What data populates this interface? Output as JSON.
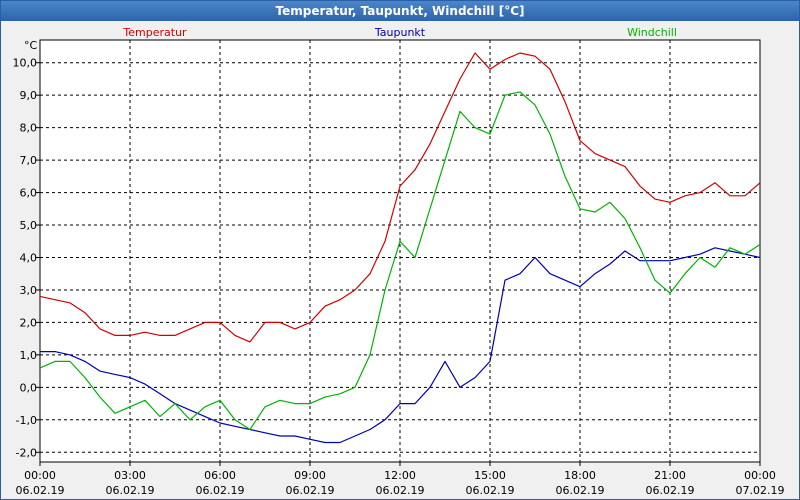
{
  "window": {
    "title": "Temperatur, Taupunkt, Windchill [°C]"
  },
  "chart_data": {
    "type": "line",
    "title": "Temperatur, Taupunkt, Windchill [°C]",
    "ylabel": "°C",
    "ylim": [
      -2.3,
      10.7
    ],
    "grid": true,
    "xlim": [
      0,
      24
    ],
    "yticks": [
      "-2,0",
      "-1,0",
      "0,0",
      "1,0",
      "2,0",
      "3,0",
      "4,0",
      "5,0",
      "6,0",
      "7,0",
      "8,0",
      "9,0",
      "10,0"
    ],
    "ytick_values": [
      -2,
      -1,
      0,
      1,
      2,
      3,
      4,
      5,
      6,
      7,
      8,
      9,
      10
    ],
    "xticks": [
      {
        "time": "00:00",
        "date": "06.02.19"
      },
      {
        "time": "03:00",
        "date": "06.02.19"
      },
      {
        "time": "06:00",
        "date": "06.02.19"
      },
      {
        "time": "09:00",
        "date": "06.02.19"
      },
      {
        "time": "12:00",
        "date": "06.02.19"
      },
      {
        "time": "15:00",
        "date": "06.02.19"
      },
      {
        "time": "18:00",
        "date": "06.02.19"
      },
      {
        "time": "21:00",
        "date": "06.02.19"
      },
      {
        "time": "00:00",
        "date": "07.02.19"
      }
    ],
    "series": [
      {
        "name": "Temperatur",
        "color": "#d40000",
        "x": [
          0,
          0.5,
          1,
          1.5,
          2,
          2.5,
          3,
          3.5,
          4,
          4.5,
          5,
          5.5,
          6,
          6.5,
          7,
          7.5,
          8,
          8.5,
          9,
          9.5,
          10,
          10.5,
          11,
          11.5,
          12,
          12.5,
          13,
          13.5,
          14,
          14.5,
          15,
          15.5,
          16,
          16.5,
          17,
          17.5,
          18,
          18.5,
          19,
          19.5,
          20,
          20.5,
          21,
          21.5,
          22,
          22.5,
          23,
          23.5,
          24
        ],
        "values": [
          2.8,
          2.7,
          2.6,
          2.3,
          1.8,
          1.6,
          1.6,
          1.7,
          1.6,
          1.6,
          1.8,
          2.0,
          2.0,
          1.6,
          1.4,
          2.0,
          2.0,
          1.8,
          2.0,
          2.5,
          2.7,
          3.0,
          3.5,
          4.5,
          6.2,
          6.7,
          7.5,
          8.5,
          9.5,
          10.3,
          9.8,
          10.1,
          10.3,
          10.2,
          9.8,
          8.8,
          7.6,
          7.2,
          7.0,
          6.8,
          6.2,
          5.8,
          5.7,
          5.9,
          6.0,
          6.3,
          5.9,
          5.9,
          6.3
        ]
      },
      {
        "name": "Taupunkt",
        "color": "#0000b4",
        "x": [
          0,
          0.5,
          1,
          1.5,
          2,
          2.5,
          3,
          3.5,
          4,
          4.5,
          5,
          5.5,
          6,
          6.5,
          7,
          7.5,
          8,
          8.5,
          9,
          9.5,
          10,
          10.5,
          11,
          11.5,
          12,
          12.5,
          13,
          13.5,
          14,
          14.5,
          15,
          15.5,
          16,
          16.5,
          17,
          17.5,
          18,
          18.5,
          19,
          19.5,
          20,
          20.5,
          21,
          21.5,
          22,
          22.5,
          23,
          23.5,
          24
        ],
        "values": [
          1.1,
          1.1,
          1.0,
          0.8,
          0.5,
          0.4,
          0.3,
          0.1,
          -0.2,
          -0.5,
          -0.7,
          -0.9,
          -1.1,
          -1.2,
          -1.3,
          -1.4,
          -1.5,
          -1.5,
          -1.6,
          -1.7,
          -1.7,
          -1.5,
          -1.3,
          -1.0,
          -0.5,
          -0.5,
          0.0,
          0.8,
          0.0,
          0.3,
          0.8,
          3.3,
          3.5,
          4.0,
          3.5,
          3.3,
          3.1,
          3.5,
          3.8,
          4.2,
          3.9,
          3.9,
          3.9,
          4.0,
          4.1,
          4.3,
          4.2,
          4.1,
          4.0
        ]
      },
      {
        "name": "Windchill",
        "color": "#00b400",
        "x": [
          0,
          0.5,
          1,
          1.5,
          2,
          2.5,
          3,
          3.5,
          4,
          4.5,
          5,
          5.5,
          6,
          6.5,
          7,
          7.5,
          8,
          8.5,
          9,
          9.5,
          10,
          10.5,
          11,
          11.5,
          12,
          12.5,
          13,
          13.5,
          14,
          14.5,
          15,
          15.5,
          16,
          16.5,
          17,
          17.5,
          18,
          18.5,
          19,
          19.5,
          20,
          20.5,
          21,
          21.5,
          22,
          22.5,
          23,
          23.5,
          24
        ],
        "values": [
          0.6,
          0.8,
          0.8,
          0.3,
          -0.3,
          -0.8,
          -0.6,
          -0.4,
          -0.9,
          -0.5,
          -1.0,
          -0.6,
          -0.4,
          -1.0,
          -1.3,
          -0.6,
          -0.4,
          -0.5,
          -0.5,
          -0.3,
          -0.2,
          0.0,
          1.0,
          3.0,
          4.5,
          4.0,
          5.5,
          7.0,
          8.5,
          8.0,
          7.8,
          9.0,
          9.1,
          8.7,
          7.8,
          6.5,
          5.5,
          5.4,
          5.7,
          5.2,
          4.3,
          3.3,
          2.9,
          3.5,
          4.0,
          3.7,
          4.3,
          4.1,
          4.4
        ]
      }
    ]
  }
}
